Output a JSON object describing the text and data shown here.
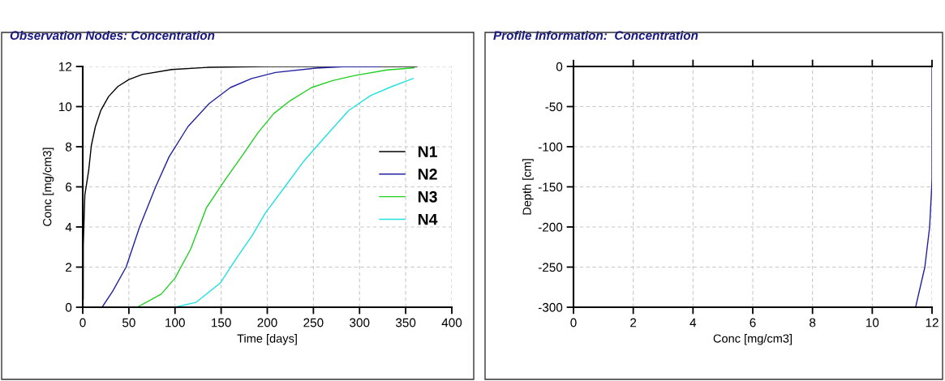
{
  "chart_data": [
    {
      "type": "line",
      "title": "Observation Nodes: Concentration",
      "xlabel": "Time [days]",
      "ylabel": "Conc [mg/cm3]",
      "xlim": [
        0,
        400
      ],
      "xticks": [
        0,
        50,
        100,
        150,
        200,
        250,
        300,
        350,
        400
      ],
      "ylim": [
        0,
        12
      ],
      "yticks": [
        0,
        2,
        4,
        6,
        8,
        10,
        12
      ],
      "grid": true,
      "legend": "right",
      "line_style": "solid",
      "marker": "none",
      "series": [
        {
          "name": "N1",
          "color": "#000000",
          "x": [
            0.5,
            0.6,
            2.3,
            6.4,
            9.3,
            13.7,
            19.5,
            28,
            38,
            50,
            64.5,
            96.5,
            137,
            200,
            362
          ],
          "values": [
            0.4,
            3.1,
            5.6,
            6.8,
            8.05,
            9.0,
            9.8,
            10.5,
            11.0,
            11.35,
            11.6,
            11.85,
            11.96,
            12,
            12
          ]
        },
        {
          "name": "N2",
          "color": "#2020a0",
          "x": [
            21,
            32.5,
            47,
            61.6,
            79,
            93.6,
            114,
            137,
            160,
            183,
            209,
            253,
            282,
            323
          ],
          "values": [
            0,
            0.8,
            2.0,
            4.0,
            6.0,
            7.5,
            9.0,
            10.15,
            10.95,
            11.4,
            11.7,
            11.92,
            11.99,
            12
          ]
        },
        {
          "name": "N3",
          "color": "#20d020",
          "x": [
            59,
            85,
            100,
            117,
            134,
            155,
            172,
            190,
            207,
            225,
            248,
            271,
            295,
            330,
            359
          ],
          "values": [
            0,
            0.65,
            1.45,
            2.9,
            4.95,
            6.4,
            7.5,
            8.7,
            9.65,
            10.3,
            10.95,
            11.3,
            11.55,
            11.83,
            11.93
          ]
        },
        {
          "name": "N4",
          "color": "#20e0e0",
          "x": [
            100,
            123,
            149,
            166,
            184,
            198,
            219,
            239,
            259,
            288,
            312,
            335,
            358
          ],
          "values": [
            0,
            0.25,
            1.2,
            2.4,
            3.6,
            4.7,
            6.0,
            7.25,
            8.3,
            9.8,
            10.55,
            11.0,
            11.4
          ]
        }
      ]
    },
    {
      "type": "line",
      "title": "Profile Information:  Concentration",
      "xlabel": "Conc [mg/cm3]",
      "ylabel": "Depth [cm]",
      "xlim": [
        0,
        12
      ],
      "xticks": [
        0,
        2,
        4,
        6,
        8,
        10,
        12
      ],
      "ylim": [
        -300,
        0
      ],
      "yticks": [
        -300,
        -250,
        -200,
        -150,
        -100,
        -50,
        0
      ],
      "grid": true,
      "legend": false,
      "line_style": "solid",
      "marker": "none",
      "series": [
        {
          "color": "#2020a0",
          "x": [
            12,
            12,
            12,
            11.99,
            11.92,
            11.76,
            11.45
          ],
          "values": [
            0,
            -100,
            -140,
            -150,
            -200,
            -250,
            -300
          ]
        }
      ]
    }
  ]
}
